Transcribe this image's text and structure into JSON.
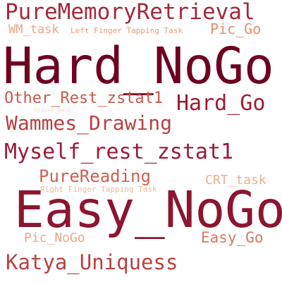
{
  "words": {
    "hard_nogo": "Hard_NoGo",
    "easy_nogo": "Easy_NoGo",
    "pure_memory_retrieval": "PureMemoryRetrieval",
    "myself_rest_zstat1": "Myself_rest_zstat1",
    "hard_go": "Hard_Go",
    "katya_uniquess": "Katya_Uniquess",
    "wammes_drawing": "Wammes_Drawing",
    "pure_reading": "PureReading",
    "other_rest_zstat1": "Other_Rest_zstat1",
    "pic_go": "Pic_Go",
    "easy_go": "Easy_Go",
    "pic_nogo": "Pic_NoGo",
    "crt_task": "CRT_task",
    "wm_task": "WM_task",
    "left_finger_tapping_task": "Left Finger Tapping Task",
    "right_finger_tapping_task": "Right Finger Tapping Task",
    "faint_word": "Visual_Rest"
  },
  "colors": {
    "hard_nogo": "#6e0020",
    "easy_nogo": "#8c1530",
    "pure_memory_retrieval": "#a3293a",
    "myself_rest_zstat1": "#9b1b36",
    "hard_go": "#9a1c33",
    "katya_uniquess": "#b9413f",
    "wammes_drawing": "#b9403f",
    "pure_reading": "#cd6150",
    "other_rest_zstat1": "#c9594a",
    "pic_go": "#e1916e",
    "easy_go": "#d87a5e",
    "pic_nogo": "#eaa886",
    "crt_task": "#eeb090",
    "wm_task": "#eba585",
    "left_finger_tapping_task": "#e99c7c",
    "right_finger_tapping_task": "#f0b9a0",
    "faint_word": "#f7ddd0"
  }
}
